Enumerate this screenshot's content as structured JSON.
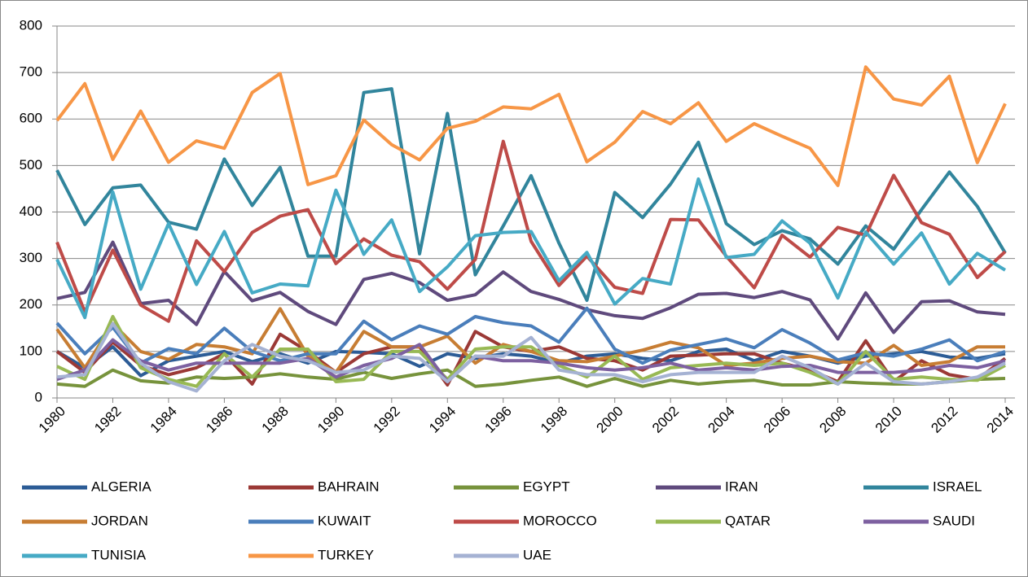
{
  "chart_data": {
    "type": "line",
    "x": [
      1980,
      1981,
      1982,
      1983,
      1984,
      1985,
      1986,
      1987,
      1988,
      1989,
      1990,
      1991,
      1992,
      1993,
      1994,
      1995,
      1996,
      1997,
      1998,
      1999,
      2000,
      2001,
      2002,
      2003,
      2004,
      2005,
      2006,
      2007,
      2008,
      2009,
      2010,
      2011,
      2012,
      2013,
      2014
    ],
    "xlim": [
      1980,
      2014
    ],
    "xticks": [
      1980,
      1982,
      1984,
      1986,
      1988,
      1990,
      1992,
      1994,
      1996,
      1998,
      2000,
      2002,
      2004,
      2006,
      2008,
      2010,
      2012,
      2014
    ],
    "ylim": [
      0,
      800
    ],
    "yticks": [
      0,
      100,
      200,
      300,
      400,
      500,
      600,
      700,
      800
    ],
    "grid": true,
    "legend": "bottom",
    "series": [
      {
        "name": "ALGERIA",
        "color": "#2c5c96",
        "values": [
          100,
          65,
          110,
          48,
          80,
          90,
          100,
          78,
          95,
          75,
          100,
          98,
          95,
          68,
          95,
          85,
          95,
          90,
          75,
          90,
          95,
          85,
          80,
          100,
          105,
          80,
          100,
          90,
          75,
          90,
          95,
          100,
          88,
          85,
          95
        ]
      },
      {
        "name": "BAHRAIN",
        "color": "#9b3936",
        "values": [
          100,
          55,
          120,
          70,
          50,
          65,
          95,
          30,
          137,
          100,
          55,
          95,
          110,
          110,
          28,
          143,
          110,
          100,
          110,
          85,
          80,
          60,
          90,
          92,
          95,
          95,
          75,
          60,
          35,
          123,
          35,
          80,
          50,
          40,
          85
        ]
      },
      {
        "name": "EGYPT",
        "color": "#77933c",
        "values": [
          30,
          25,
          60,
          37,
          32,
          45,
          42,
          45,
          52,
          45,
          40,
          55,
          42,
          52,
          60,
          25,
          30,
          38,
          45,
          25,
          42,
          25,
          38,
          30,
          35,
          38,
          28,
          28,
          35,
          32,
          30,
          30,
          35,
          40,
          42
        ]
      },
      {
        "name": "IRAN",
        "color": "#5f4a7d",
        "values": [
          214,
          227,
          335,
          203,
          210,
          158,
          272,
          209,
          227,
          186,
          158,
          255,
          268,
          248,
          210,
          222,
          271,
          229,
          212,
          190,
          177,
          171,
          194,
          223,
          225,
          216,
          229,
          211,
          127,
          226,
          141,
          207,
          209,
          185,
          180
        ]
      },
      {
        "name": "ISRAEL",
        "color": "#31859c",
        "values": [
          490,
          373,
          452,
          458,
          378,
          363,
          514,
          414,
          496,
          305,
          305,
          657,
          665,
          310,
          612,
          265,
          370,
          478,
          333,
          210,
          442,
          388,
          460,
          550,
          375,
          330,
          360,
          342,
          288,
          370,
          320,
          405,
          486,
          412,
          312
        ]
      },
      {
        "name": "JORDAN",
        "color": "#c77d33",
        "values": [
          148,
          65,
          160,
          100,
          83,
          115,
          110,
          95,
          192,
          90,
          55,
          143,
          110,
          110,
          133,
          75,
          115,
          100,
          80,
          78,
          90,
          103,
          120,
          108,
          70,
          75,
          85,
          90,
          78,
          75,
          113,
          70,
          78,
          110,
          110
        ]
      },
      {
        "name": "KUWAIT",
        "color": "#4a7ebb",
        "values": [
          161,
          95,
          152,
          75,
          106,
          95,
          150,
          100,
          80,
          95,
          95,
          165,
          125,
          155,
          137,
          175,
          162,
          155,
          120,
          193,
          105,
          75,
          103,
          115,
          127,
          108,
          147,
          118,
          82,
          97,
          90,
          105,
          125,
          80,
          100
        ]
      },
      {
        "name": "MOROCCO",
        "color": "#be4b48",
        "values": [
          335,
          185,
          318,
          200,
          165,
          338,
          272,
          356,
          391,
          405,
          289,
          342,
          307,
          293,
          234,
          298,
          552,
          337,
          242,
          305,
          238,
          225,
          384,
          383,
          305,
          237,
          350,
          303,
          367,
          350,
          479,
          377,
          352,
          259,
          315
        ]
      },
      {
        "name": "QATAR",
        "color": "#98b954",
        "values": [
          68,
          40,
          175,
          65,
          40,
          25,
          95,
          45,
          105,
          105,
          35,
          40,
          100,
          100,
          40,
          105,
          110,
          110,
          70,
          45,
          90,
          40,
          65,
          70,
          75,
          70,
          75,
          55,
          30,
          100,
          40,
          45,
          40,
          38,
          70
        ]
      },
      {
        "name": "SAUDI",
        "color": "#7d60a0",
        "values": [
          40,
          60,
          125,
          80,
          60,
          75,
          75,
          75,
          75,
          85,
          45,
          70,
          85,
          115,
          35,
          90,
          80,
          80,
          75,
          65,
          60,
          65,
          75,
          60,
          65,
          60,
          68,
          70,
          55,
          55,
          55,
          60,
          70,
          65,
          80
        ]
      },
      {
        "name": "TUNISIA",
        "color": "#46aac5",
        "values": [
          298,
          173,
          443,
          234,
          375,
          244,
          358,
          226,
          245,
          241,
          447,
          309,
          383,
          229,
          282,
          349,
          356,
          358,
          252,
          313,
          202,
          257,
          245,
          471,
          302,
          309,
          381,
          333,
          215,
          357,
          288,
          355,
          245,
          311,
          275
        ]
      },
      {
        "name": "TURKEY",
        "color": "#f79646",
        "values": [
          597,
          676,
          513,
          617,
          507,
          553,
          537,
          657,
          698,
          459,
          478,
          598,
          545,
          512,
          580,
          595,
          626,
          622,
          653,
          508,
          550,
          616,
          590,
          635,
          552,
          590,
          563,
          537,
          457,
          712,
          643,
          630,
          692,
          506,
          633
        ]
      },
      {
        "name": "UAE",
        "color": "#a5b2d3",
        "values": [
          45,
          50,
          160,
          75,
          35,
          15,
          80,
          115,
          90,
          80,
          55,
          60,
          90,
          85,
          35,
          90,
          90,
          130,
          60,
          50,
          50,
          35,
          50,
          55,
          55,
          55,
          90,
          65,
          30,
          75,
          35,
          30,
          35,
          45,
          75
        ]
      }
    ]
  }
}
